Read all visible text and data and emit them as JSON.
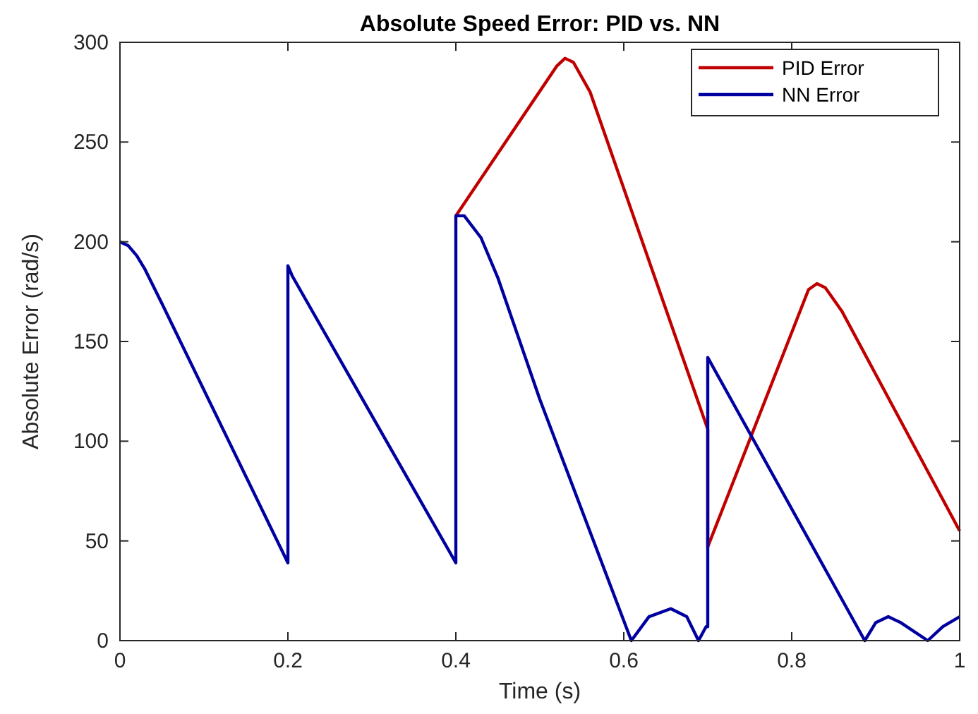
{
  "chart_data": {
    "type": "line",
    "title": "Absolute Speed Error: PID vs. NN",
    "xlabel": "Time (s)",
    "ylabel": "Absolute Error (rad/s)",
    "xlim": [
      0,
      1
    ],
    "xticks": [
      0,
      0.2,
      0.4,
      0.6,
      0.8,
      1
    ],
    "ylim": [
      0,
      300
    ],
    "yticks": [
      0,
      50,
      100,
      150,
      200,
      250,
      300
    ],
    "grid": false,
    "legend": "top right",
    "marker": "none",
    "line_style": "solid",
    "series": [
      {
        "name": "PID Error",
        "color": "#c00000",
        "x": [
          0.4,
          0.52,
          0.53,
          0.54,
          0.56,
          0.7,
          0.7,
          0.82,
          0.83,
          0.84,
          0.86,
          1.0
        ],
        "values": [
          213,
          288,
          292,
          290,
          275,
          106,
          47,
          176,
          179,
          177,
          165,
          55
        ]
      },
      {
        "name": "NN Error",
        "color": "#0000a0",
        "x": [
          0,
          0.01,
          0.02,
          0.03,
          0.05,
          0.2,
          0.2,
          0.205,
          0.4,
          0.4,
          0.41,
          0.43,
          0.45,
          0.5,
          0.609,
          0.63,
          0.656,
          0.675,
          0.689,
          0.698,
          0.7,
          0.7,
          0.887,
          0.9,
          0.915,
          0.93,
          0.962,
          0.98,
          1.0
        ],
        "values": [
          200,
          198,
          193,
          186,
          169,
          39,
          188,
          183,
          39,
          213,
          213,
          202,
          182,
          121,
          0,
          12,
          16,
          12,
          0,
          7,
          7,
          142,
          0,
          9,
          12,
          9,
          0,
          7,
          12
        ]
      }
    ]
  }
}
